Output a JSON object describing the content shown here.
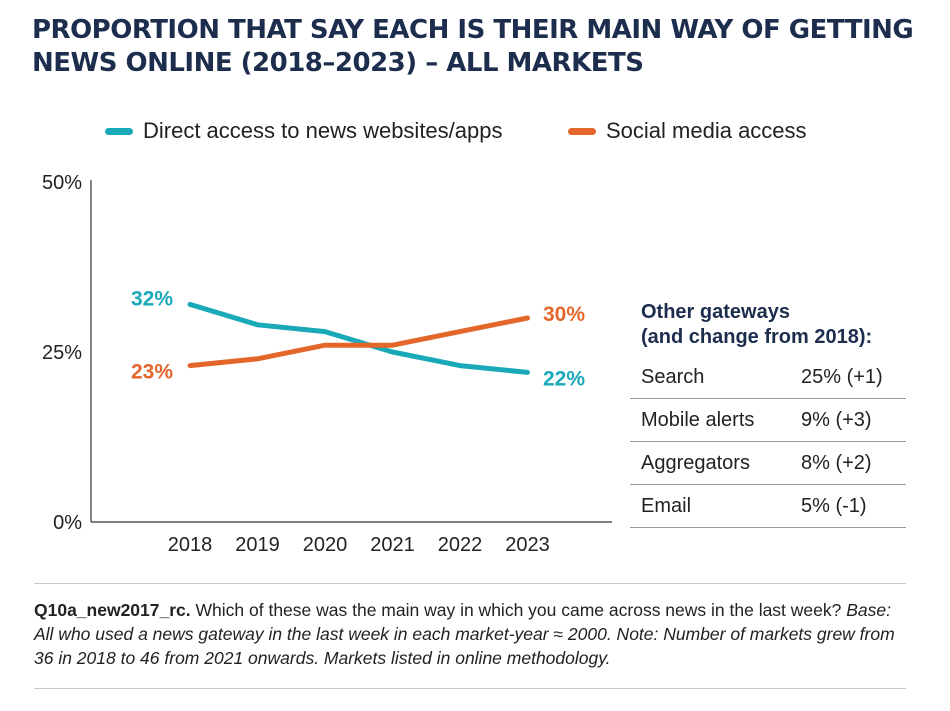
{
  "title_line1": "PROPORTION THAT SAY EACH IS THEIR MAIN WAY OF GETTING",
  "title_line2": "NEWS ONLINE (2018–2023) – ALL MARKETS",
  "chart_data": {
    "type": "line",
    "title": "PROPORTION THAT SAY EACH IS THEIR MAIN WAY OF GETTING NEWS ONLINE (2018–2023) – ALL MARKETS",
    "xlabel": "",
    "ylabel": "",
    "x": [
      "2018",
      "2019",
      "2020",
      "2021",
      "2022",
      "2023"
    ],
    "ylim": [
      0,
      50
    ],
    "yticks": [
      "0%",
      "25%",
      "50%"
    ],
    "series": [
      {
        "name": "Direct access to news websites/apps",
        "color": "#1aa9b8",
        "values": [
          32,
          29,
          28,
          25,
          23,
          22
        ],
        "start_label": "32%",
        "end_label": "22%"
      },
      {
        "name": "Social media access",
        "color": "#e5662b",
        "values": [
          23,
          24,
          26,
          26,
          28,
          30
        ],
        "start_label": "23%",
        "end_label": "30%"
      }
    ],
    "legend_position": "top"
  },
  "gateways": {
    "heading_line1": "Other gateways",
    "heading_line2": "(and change from 2018):",
    "rows": [
      {
        "name": "Search",
        "value": "25% (+1)"
      },
      {
        "name": "Mobile alerts",
        "value": "9% (+3)"
      },
      {
        "name": "Aggregators",
        "value": "8% (+2)"
      },
      {
        "name": "Email",
        "value": "5% (-1)"
      }
    ]
  },
  "footnote": {
    "code": "Q10a_new2017_rc.",
    "question": " Which of these was the main way in which you came across news in the last week? ",
    "base": "Base: All who used a news gateway in the last week in each market-year ≈ 2000. Note: Number of markets grew from 36 in 2018 to 46 from 2021 onwards. Markets listed in online methodology."
  }
}
